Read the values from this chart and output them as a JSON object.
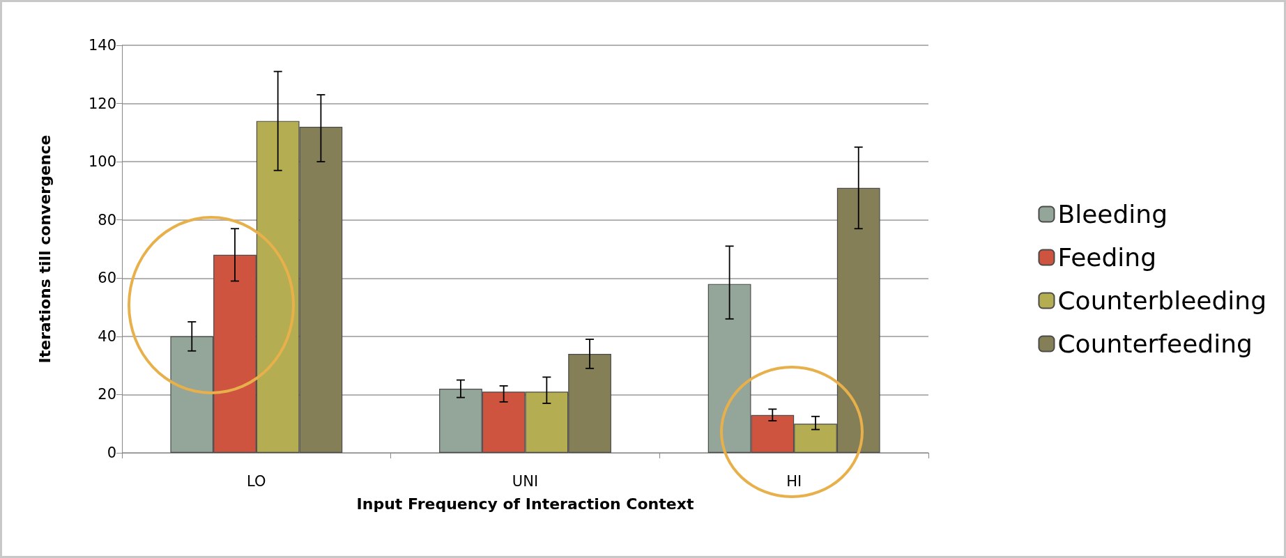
{
  "chart_data": {
    "type": "bar",
    "xlabel": "Input Frequency of Interaction Context",
    "ylabel": "Iterations till convergence",
    "categories": [
      "LO",
      "UNI",
      "HI"
    ],
    "series": [
      {
        "name": "Bleeding",
        "color": "#94a59a",
        "values": [
          40,
          22,
          58
        ],
        "errors": [
          [
            35,
            45
          ],
          [
            19,
            25
          ],
          [
            46,
            71
          ]
        ]
      },
      {
        "name": "Feeding",
        "color": "#cf543f",
        "values": [
          68,
          21,
          13
        ],
        "errors": [
          [
            59,
            77
          ],
          [
            17.5,
            23
          ],
          [
            11,
            15
          ]
        ]
      },
      {
        "name": "Counterbleeding",
        "color": "#b5ad52",
        "values": [
          114,
          21,
          10
        ],
        "errors": [
          [
            97,
            131
          ],
          [
            17,
            26
          ],
          [
            8,
            12.5
          ]
        ]
      },
      {
        "name": "Counterfeeding",
        "color": "#847f57",
        "values": [
          112,
          34,
          91
        ],
        "errors": [
          [
            100,
            123
          ],
          [
            29,
            39
          ],
          [
            77,
            105
          ]
        ]
      }
    ],
    "ylim": [
      0,
      140
    ],
    "yticks": [
      0,
      20,
      40,
      60,
      80,
      100,
      120,
      140
    ],
    "grid": "y",
    "legend": "right"
  }
}
